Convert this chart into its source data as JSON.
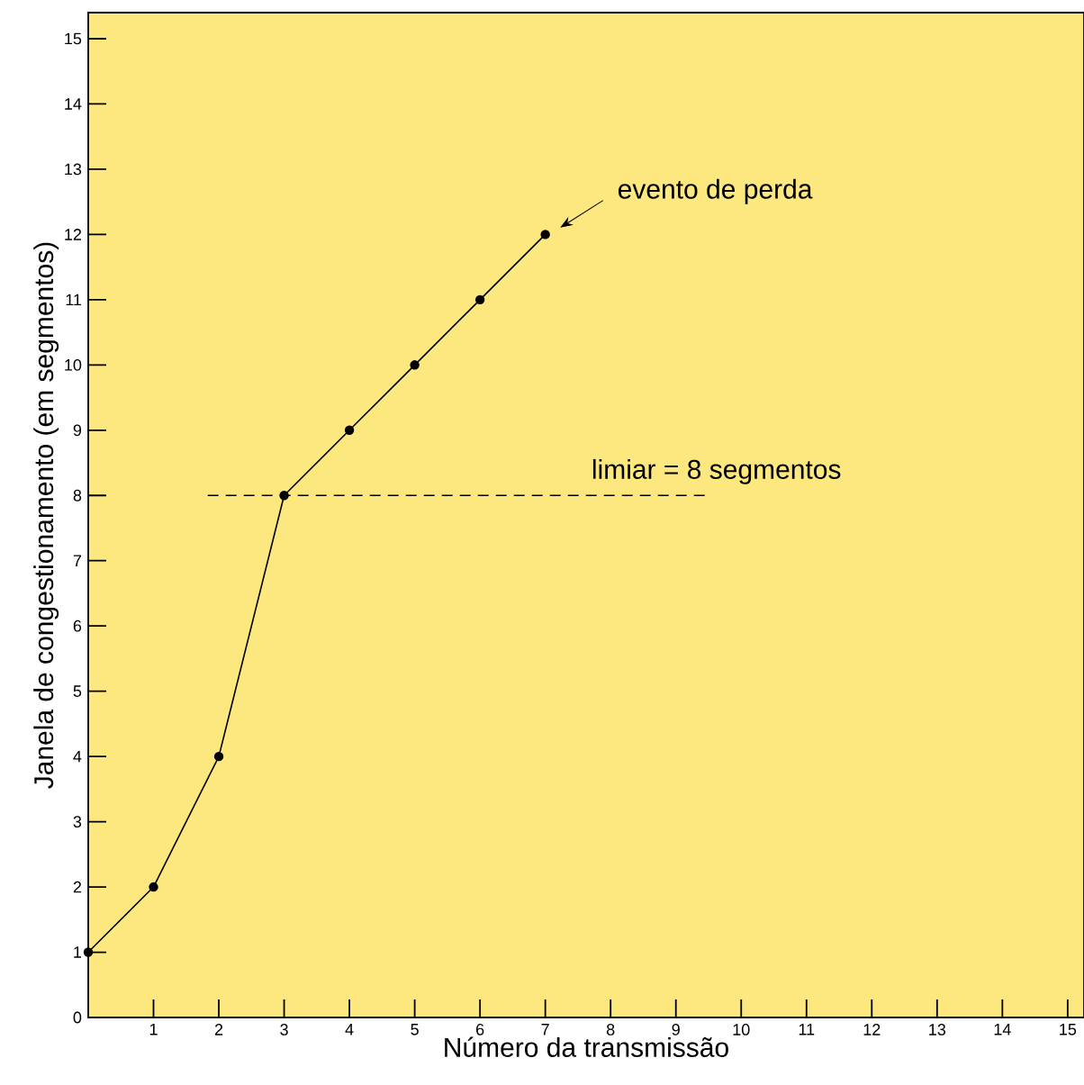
{
  "chart_data": {
    "type": "line",
    "xlabel": "Número da transmissão",
    "ylabel": "Janela de congestionamento (em segmentos)",
    "x": [
      0,
      1,
      2,
      3,
      4,
      5,
      6,
      7
    ],
    "series": [
      {
        "color": "#000000",
        "values": [
          1,
          2,
          4,
          8,
          9,
          10,
          11,
          12
        ]
      }
    ],
    "marker": "circle",
    "line_style": "solid",
    "grid": false,
    "xlim": [
      0,
      15.25
    ],
    "ylim": [
      0,
      15.4
    ],
    "xticks": [
      1,
      2,
      3,
      4,
      5,
      6,
      7,
      8,
      9,
      10,
      11,
      12,
      13,
      14,
      15
    ],
    "yticks": [
      0,
      1,
      2,
      3,
      4,
      5,
      6,
      7,
      8,
      9,
      10,
      11,
      12,
      13,
      14,
      15
    ],
    "ref_lines": [
      {
        "axis": "y",
        "value": 8,
        "label": "limiar = 8 segmentos",
        "color": "#000000",
        "line_style": "dashed"
      }
    ],
    "annotations": [
      "evento de perda"
    ]
  }
}
